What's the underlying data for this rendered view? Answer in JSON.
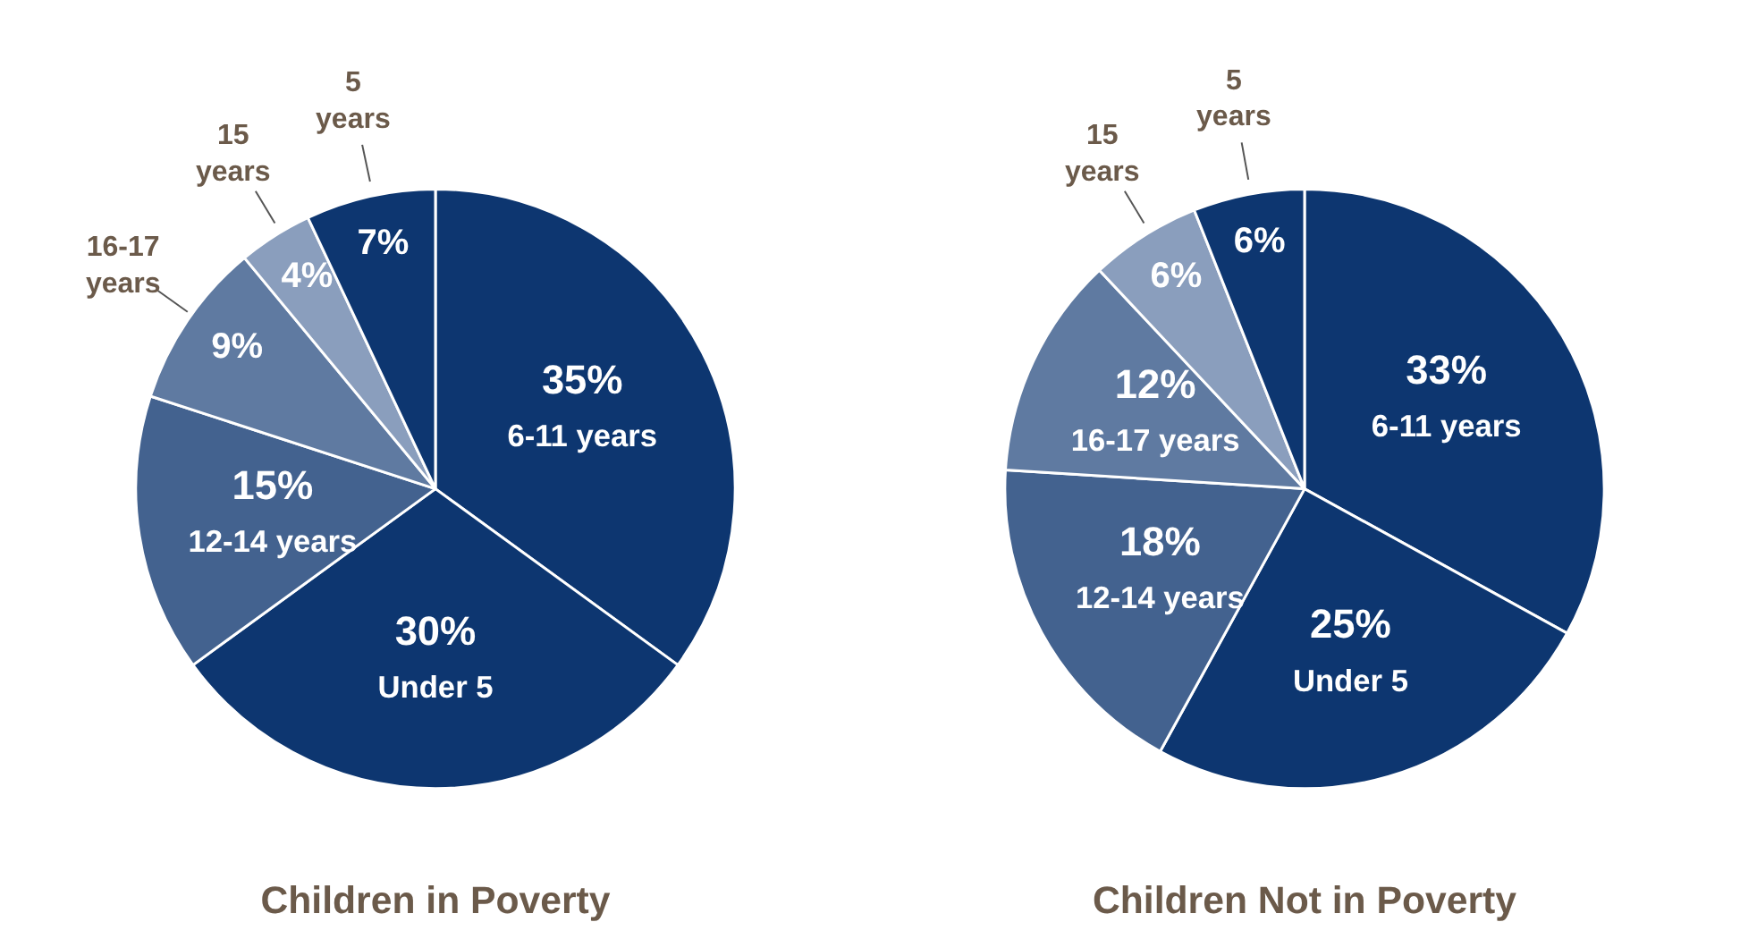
{
  "chart_data": [
    {
      "type": "pie",
      "title": "Children in Poverty",
      "categories": [
        "6-11 years",
        "Under 5",
        "12-14 years",
        "16-17 years",
        "15 years",
        "5 years"
      ],
      "values": [
        35,
        30,
        15,
        9,
        4,
        7
      ],
      "value_labels": [
        "35%",
        "30%",
        "15%",
        "9%",
        "4%",
        "7%"
      ],
      "colors": [
        "#0d3670",
        "#0d3670",
        "#43628f",
        "#5f7aa1",
        "#8a9ebd",
        "#0d3670"
      ]
    },
    {
      "type": "pie",
      "title": "Children Not in Poverty",
      "categories": [
        "6-11 years",
        "Under 5",
        "12-14 years",
        "16-17 years",
        "15 years",
        "5 years"
      ],
      "values": [
        33,
        25,
        18,
        12,
        6,
        6
      ],
      "value_labels": [
        "33%",
        "25%",
        "18%",
        "12%",
        "6%",
        "6%"
      ],
      "colors": [
        "#0d3670",
        "#0d3670",
        "#43628f",
        "#5f7aa1",
        "#8a9ebd",
        "#0d3670"
      ]
    }
  ]
}
